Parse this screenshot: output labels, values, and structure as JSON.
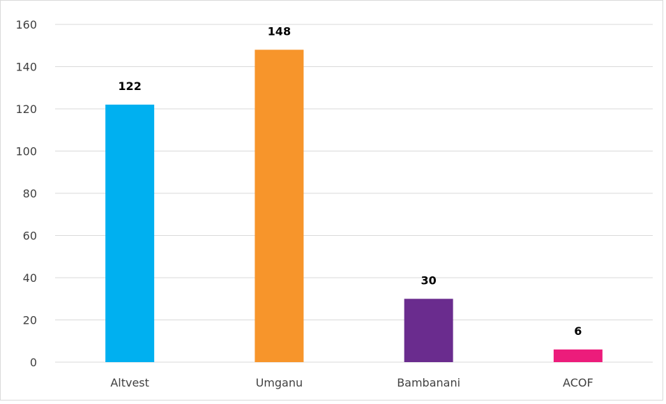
{
  "chart_data": {
    "type": "bar",
    "categories": [
      "Altvest",
      "Umganu",
      "Bambanani",
      "ACOF"
    ],
    "values": [
      122,
      148,
      30,
      6
    ],
    "colors": [
      "#00b0f0",
      "#f7952b",
      "#6a2c8e",
      "#ec1c7b"
    ],
    "data_labels": [
      "122",
      "148",
      "30",
      "6"
    ],
    "title": "",
    "xlabel": "",
    "ylabel": "",
    "ylim": [
      0,
      160
    ],
    "yticks": [
      0,
      20,
      40,
      60,
      80,
      100,
      120,
      140,
      160
    ],
    "grid": true,
    "legend": false
  }
}
